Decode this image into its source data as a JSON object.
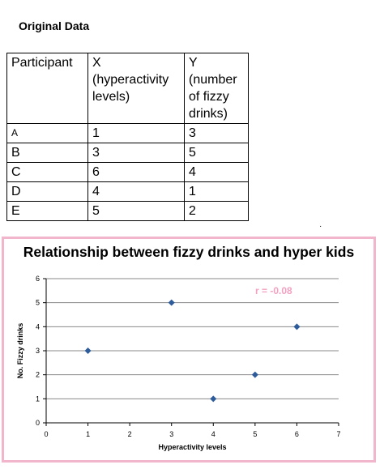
{
  "section_title": "Original Data",
  "table": {
    "headers": [
      "Participant",
      "X\n(hyperactivity\nlevels)",
      "Y\n(number\nof fizzy\ndrinks)"
    ],
    "rows": [
      [
        "A",
        "1",
        "3"
      ],
      [
        "B",
        "3",
        "5"
      ],
      [
        "C",
        "6",
        "4"
      ],
      [
        "D",
        "4",
        "1"
      ],
      [
        "E",
        "5",
        "2"
      ]
    ]
  },
  "stray_mark": "·",
  "colors": {
    "frame_border": "#f2b6cc",
    "annotation": "#f2a0c0",
    "marker": "#2e5c9a",
    "grid": "#8a8a8a"
  },
  "chart_data": {
    "type": "scatter",
    "title": "Relationship between fizzy drinks and hyper kids",
    "xlabel": "Hyperactivity levels",
    "ylabel": "No. Fizzy drinks",
    "xlim": [
      0,
      7
    ],
    "ylim": [
      0,
      6
    ],
    "xticks": [
      "0",
      "1",
      "2",
      "3",
      "4",
      "5",
      "6",
      "7"
    ],
    "yticks": [
      "0",
      "1",
      "2",
      "3",
      "4",
      "5",
      "6"
    ],
    "grid": "horizontal",
    "marker": "diamond",
    "points": [
      {
        "x": 1,
        "y": 3
      },
      {
        "x": 3,
        "y": 5
      },
      {
        "x": 6,
        "y": 4
      },
      {
        "x": 4,
        "y": 1
      },
      {
        "x": 5,
        "y": 2
      }
    ],
    "annotation": "r = -0.08"
  }
}
